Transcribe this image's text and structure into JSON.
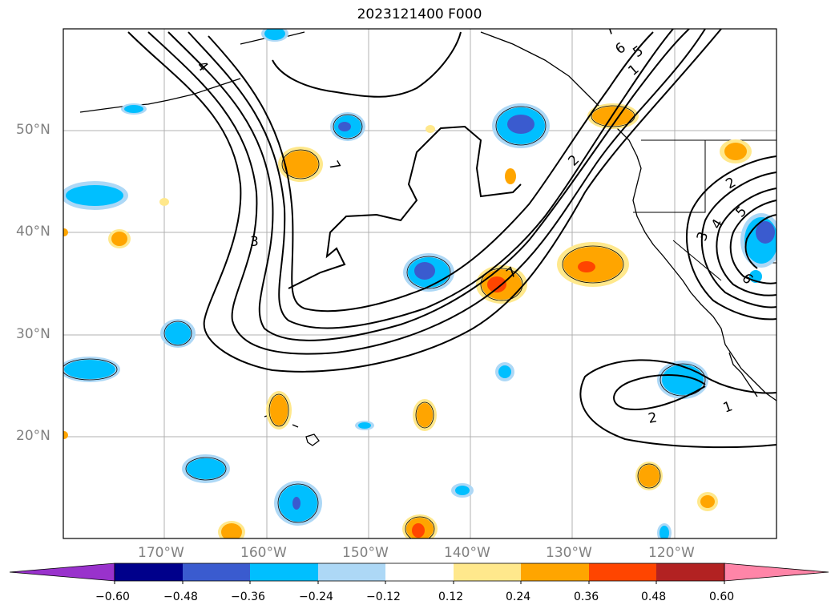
{
  "title": "2023121400 F000",
  "latitude_labels": [
    "50°N",
    "40°N",
    "30°N",
    "20°N"
  ],
  "longitude_labels": [
    "170°W",
    "160°W",
    "150°W",
    "140°W",
    "130°W",
    "120°W"
  ],
  "contour_labels": [
    "4",
    "3",
    "7",
    "7",
    "7",
    "6",
    "5",
    "2",
    "1",
    "2",
    "1",
    "3",
    "4",
    "5",
    "6",
    "2"
  ],
  "colorbar": {
    "ticks": [
      "−0.60",
      "−0.48",
      "−0.36",
      "−0.24",
      "−0.12",
      "0.12",
      "0.24",
      "0.36",
      "0.48",
      "0.60"
    ],
    "colors": [
      "#9932cc",
      "#00008b",
      "#3a5bcf",
      "#00bfff",
      "#add8f6",
      "#ffffff",
      "#ffe88c",
      "#ffa500",
      "#ff4500",
      "#b22222",
      "#ff85a8"
    ]
  }
}
